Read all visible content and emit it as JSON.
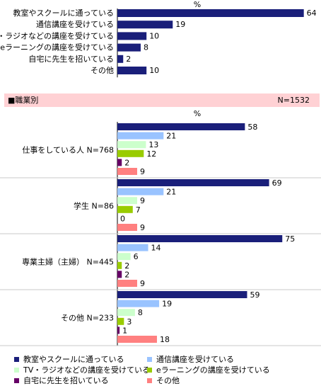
{
  "section_header": {
    "title": "■職業別",
    "n_label": "N=1532"
  },
  "legend_items": [
    {
      "label": "教室やスクールに通っている",
      "color": "#1a1f7a"
    },
    {
      "label": "通信講座を受けている",
      "color": "#99c3ff"
    },
    {
      "label": "TV・ラジオなどの講座を受けている",
      "color": "#ccffcc"
    },
    {
      "label": "eラーニングの講座を受けている",
      "color": "#99cc00"
    },
    {
      "label": "自宅に先生を招いている",
      "color": "#660066"
    },
    {
      "label": "その他",
      "color": "#ff8080"
    }
  ],
  "chart_data": [
    {
      "type": "bar",
      "orientation": "horizontal",
      "unit_label": "%",
      "categories": [
        "教室やスクールに通っている",
        "通信講座を受けている",
        "TV・ラジオなどの講座を受けている",
        "eラーニングの講座を受けている",
        "自宅に先生を招いている",
        "その他"
      ],
      "values": [
        64,
        19,
        10,
        8,
        2,
        10
      ],
      "color": "#1a1f7a",
      "xlim": [
        0,
        100
      ]
    },
    {
      "type": "bar",
      "orientation": "horizontal",
      "unit_label": "%",
      "series_names": [
        "教室やスクールに通っている",
        "通信講座を受けている",
        "TV・ラジオなどの講座を受けている",
        "eラーニングの講座を受けている",
        "自宅に先生を招いている",
        "その他"
      ],
      "groups": [
        {
          "label": "仕事をしている人 N=768",
          "values": [
            58,
            21,
            13,
            12,
            2,
            9
          ]
        },
        {
          "label": "学生 N=86",
          "values": [
            69,
            21,
            9,
            7,
            0,
            9
          ]
        },
        {
          "label": "専業主婦（主婦） N=445",
          "values": [
            75,
            14,
            6,
            2,
            2,
            9
          ]
        },
        {
          "label": "その他 N=233",
          "values": [
            59,
            19,
            8,
            3,
            1,
            18
          ]
        }
      ],
      "colors": [
        "#1a1f7a",
        "#99c3ff",
        "#ccffcc",
        "#99cc00",
        "#660066",
        "#ff8080"
      ],
      "xlim": [
        0,
        100
      ]
    }
  ]
}
